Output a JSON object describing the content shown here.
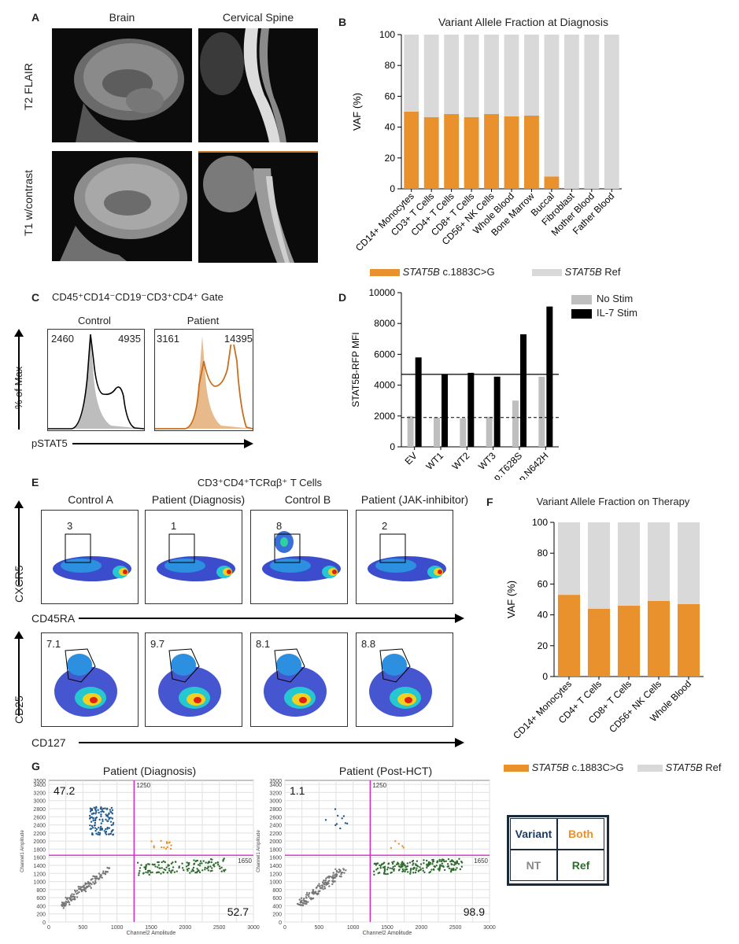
{
  "panels": {
    "A": "A",
    "B": "B",
    "C": "C",
    "D": "D",
    "E": "E",
    "F": "F",
    "G": "G"
  },
  "panelA": {
    "col1": "Brain",
    "col2": "Cervical Spine",
    "row1": "T2 FLAIR",
    "row2": "T1 w/contrast"
  },
  "chartB": {
    "type": "bar",
    "title": "Variant Allele Fraction at Diagnosis",
    "ylabel": "VAF (%)",
    "ylim": [
      0,
      100
    ],
    "yticks": [
      "0",
      "20",
      "40",
      "60",
      "80",
      "100"
    ],
    "categories": [
      "CD14+ Monocytes",
      "CD3+ T Cells",
      "CD4+ T Cells",
      "CD8+ T Cells",
      "CD56+ NK Cells",
      "Whole Blood",
      "Bone Marrow",
      "Buccal",
      "Fibroblast",
      "Mother Blood",
      "Father Blood"
    ],
    "series": [
      {
        "name": "STAT5B c.1883C>G",
        "values": [
          50,
          46.5,
          48.5,
          46.5,
          48.5,
          47,
          47.5,
          8,
          0,
          0,
          0
        ],
        "color": "#E8912D"
      },
      {
        "name": "STAT5B Ref",
        "values": [
          50,
          53.5,
          51.5,
          53.5,
          51.5,
          53,
          52.5,
          92,
          100,
          100,
          100
        ],
        "color": "#D9D9D9"
      }
    ],
    "legend": {
      "gene": "STAT5B",
      "variant": " c.1883C>G",
      "ref": " Ref"
    }
  },
  "panelC": {
    "gate": "CD45⁺CD14⁻CD19⁻CD3⁺CD4⁺ Gate",
    "control": "Control",
    "patient": "Patient",
    "ylabel": "% of Max",
    "xlabel": "pSTAT5",
    "control_left": "2460",
    "control_right": "4935",
    "patient_left": "3161",
    "patient_right": "14395"
  },
  "chartD": {
    "type": "bar",
    "ylabel": "STAT5B-RFP MFI",
    "ylim": [
      0,
      10000
    ],
    "yticks": [
      "0",
      "2000",
      "4000",
      "6000",
      "8000",
      "10000"
    ],
    "categories": [
      "EV",
      "WT1",
      "WT2",
      "WT3",
      "p.T628S",
      "p.N642H"
    ],
    "series": [
      {
        "name": "No Stim",
        "values": [
          2000,
          1900,
          1850,
          1950,
          3000,
          4550
        ],
        "color": "#BFBFBF"
      },
      {
        "name": "IL-7 Stim",
        "values": [
          5800,
          4700,
          4800,
          4550,
          7300,
          9100
        ],
        "color": "#000000"
      }
    ],
    "hline_solid": 4700,
    "hline_dashed": 1900
  },
  "panelE": {
    "title": "CD3⁺CD4⁺TCRαβ⁺ T Cells",
    "cols": [
      "Control A",
      "Patient (Diagnosis)",
      "Control B",
      "Patient (JAK-inhibitor)"
    ],
    "row1_vals": [
      "3",
      "1",
      "8",
      "2"
    ],
    "row2_vals": [
      "7.1",
      "9.7",
      "8.1",
      "8.8"
    ],
    "row1_y": "CXCR5",
    "row1_x": "CD45RA",
    "row2_y": "CD25",
    "row2_x": "CD127"
  },
  "chartF": {
    "type": "bar",
    "title": "Variant Allele Fraction on Therapy",
    "ylabel": "VAF (%)",
    "ylim": [
      0,
      100
    ],
    "yticks": [
      "0",
      "20",
      "40",
      "60",
      "80",
      "100"
    ],
    "categories": [
      "CD14+ Monocytes",
      "CD4+ T Cells",
      "CD8+ T Cells",
      "CD56+ NK Cells",
      "Whole Blood"
    ],
    "series": [
      {
        "name": "STAT5B c.1883C>G",
        "values": [
          53,
          44,
          46,
          49,
          47
        ],
        "color": "#E8912D"
      },
      {
        "name": "STAT5B Ref",
        "values": [
          47,
          56,
          54,
          51,
          53
        ],
        "color": "#D9D9D9"
      }
    ],
    "legend": {
      "gene": "STAT5B",
      "variant": " c.1883C>G",
      "ref": " Ref"
    }
  },
  "panelG": {
    "plot1": {
      "title": "Patient (Diagnosis)",
      "tl": "47.2",
      "br": "52.7"
    },
    "plot2": {
      "title": "Patient (Post-HCT)",
      "tl": "1.1",
      "br": "98.9"
    },
    "yticks": [
      "0",
      "200",
      "400",
      "600",
      "800",
      "1000",
      "1200",
      "1400",
      "1600",
      "1800",
      "2000",
      "2200",
      "2400",
      "2600",
      "2800",
      "3000",
      "3200",
      "3400",
      "3500"
    ],
    "xticks": [
      "0",
      "500",
      "1000",
      "1500",
      "2000",
      "2500",
      "3000"
    ],
    "ylabel": "Channel1 Amplitude",
    "xlabel": "Channel2 Amplitude",
    "vline_label": "1250",
    "hline_label": "1650",
    "table": {
      "variant": "Variant",
      "both": "Both",
      "nt": "NT",
      "ref": "Ref"
    }
  },
  "colors": {
    "orange": "#E8912D",
    "lightgray": "#D9D9D9",
    "navy": "#1F3A5F",
    "green": "#2E6B2E",
    "magenta": "#E020D0"
  }
}
